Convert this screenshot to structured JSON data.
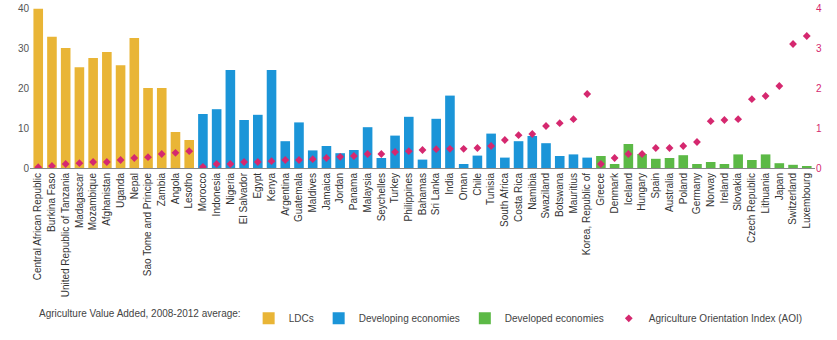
{
  "chart_data": {
    "type": "bar",
    "legend_title": "Agriculture Value Added, 2008-2012 average:",
    "legend": "bottom",
    "grid": false,
    "categories": [
      "Central African Republic",
      "Burkina Faso",
      "United Republic of Tanzania",
      "Madagascar",
      "Mozambique",
      "Afghanistan",
      "Uganda",
      "Nepal",
      "Sao Tome and Principe",
      "Zambia",
      "Angola",
      "Lesotho",
      "Morocco",
      "Indonesia",
      "Nigeria",
      "El Salvador",
      "Egypt",
      "Kenya",
      "Argentina",
      "Guatemala",
      "Maldives",
      "Jamaica",
      "Jordan",
      "Panama",
      "Malaysia",
      "Seychelles",
      "Turkey",
      "Philippines",
      "Bahamas",
      "Sri Lanka",
      "India",
      "Oman",
      "Chile",
      "Tunisia",
      "South Africa",
      "Costa Rica",
      "Namibia",
      "Swaziland",
      "Botswana",
      "Mauritius",
      "Korea, Republic of",
      "Greece",
      "Denmark",
      "Iceland",
      "Hungary",
      "Spain",
      "Australia",
      "Poland",
      "Germany",
      "Norway",
      "Ireland",
      "Slovakia",
      "Czech Republic",
      "Lithuania",
      "Japan",
      "Switzerland",
      "Luxembourg"
    ],
    "ylim": [
      0,
      40
    ],
    "yticks": [
      0,
      10,
      20,
      30,
      40
    ],
    "y2lim": [
      0,
      4
    ],
    "y2ticks": [
      0,
      1,
      2,
      3,
      4
    ],
    "series": [
      {
        "name": "LDCs",
        "type": "bar",
        "color": "#e9b536",
        "values": [
          39.8,
          32.8,
          30,
          25.2,
          27.5,
          29,
          25.7,
          32.5,
          20,
          20,
          9,
          7,
          null,
          null,
          null,
          null,
          null,
          null,
          null,
          null,
          null,
          null,
          null,
          null,
          null,
          null,
          null,
          null,
          null,
          null,
          null,
          null,
          null,
          null,
          null,
          null,
          null,
          null,
          null,
          null,
          null,
          null,
          null,
          null,
          null,
          null,
          null,
          null,
          null,
          null,
          null,
          null,
          null,
          null,
          null,
          null,
          null
        ]
      },
      {
        "name": "Developing economies",
        "type": "bar",
        "color": "#1b95d8",
        "values": [
          null,
          null,
          null,
          null,
          null,
          null,
          null,
          null,
          null,
          null,
          null,
          null,
          13.5,
          14.7,
          24.5,
          12,
          13.3,
          24.5,
          6.7,
          11.4,
          4.4,
          5.5,
          3.7,
          4.5,
          10.2,
          2.5,
          8.1,
          12.8,
          2.1,
          12.3,
          18.1,
          1,
          3.1,
          8.6,
          2.6,
          6.7,
          8,
          6.2,
          3,
          3.4,
          2.6,
          null,
          null,
          null,
          null,
          null,
          null,
          null,
          null,
          null,
          null,
          null,
          null,
          null,
          null,
          null,
          null
        ]
      },
      {
        "name": "Developed economies",
        "type": "bar",
        "color": "#5cb946",
        "values": [
          null,
          null,
          null,
          null,
          null,
          null,
          null,
          null,
          null,
          null,
          null,
          null,
          null,
          null,
          null,
          null,
          null,
          null,
          null,
          null,
          null,
          null,
          null,
          null,
          null,
          null,
          null,
          null,
          null,
          null,
          null,
          null,
          null,
          null,
          null,
          null,
          null,
          null,
          null,
          null,
          null,
          3,
          1,
          6,
          3.5,
          2.3,
          2.5,
          3.2,
          1,
          1.5,
          1,
          3.4,
          2,
          3.4,
          1.2,
          0.8,
          0.3
        ]
      },
      {
        "name": "Agriculture Orientation Index (AOI)",
        "type": "scatter",
        "axis": "y2",
        "marker": "diamond",
        "color": "#d5286f",
        "values": [
          0.02,
          0.05,
          0.1,
          0.12,
          0.15,
          0.15,
          0.2,
          0.25,
          0.27,
          0.35,
          0.38,
          0.42,
          0.03,
          0.1,
          0.1,
          0.15,
          0.15,
          0.17,
          0.2,
          0.2,
          0.22,
          0.25,
          0.28,
          0.3,
          0.35,
          0.35,
          0.4,
          0.42,
          0.45,
          0.47,
          0.48,
          0.48,
          0.5,
          0.55,
          0.7,
          0.82,
          0.85,
          1.05,
          1.12,
          1.22,
          1.85,
          0.1,
          0.25,
          0.35,
          0.35,
          0.5,
          0.5,
          0.55,
          0.65,
          1.17,
          1.2,
          1.22,
          1.72,
          1.8,
          2.05,
          3.1,
          3.3
        ]
      }
    ]
  }
}
